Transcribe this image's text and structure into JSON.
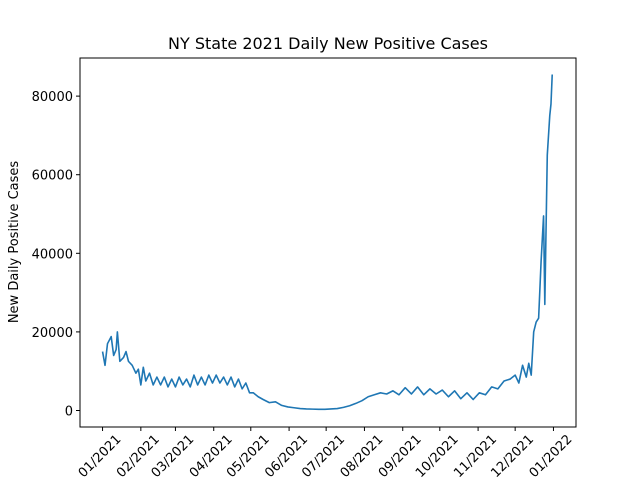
{
  "chart_data": {
    "type": "line",
    "title": "NY State 2021 Daily New Positive Cases",
    "y_label": "New Daily Positive Cases",
    "x": [
      0,
      2,
      4,
      7,
      9,
      11,
      12,
      14,
      17,
      19,
      21,
      24,
      27,
      29,
      31,
      33,
      35,
      38,
      41,
      44,
      47,
      50,
      53,
      56,
      59,
      62,
      65,
      68,
      71,
      74,
      77,
      80,
      83,
      86,
      89,
      92,
      95,
      98,
      101,
      104,
      107,
      110,
      113,
      116,
      119,
      122,
      126,
      130,
      135,
      140,
      145,
      150,
      155,
      160,
      165,
      170,
      175,
      180,
      185,
      190,
      195,
      200,
      205,
      210,
      215,
      220,
      225,
      230,
      235,
      240,
      245,
      250,
      255,
      260,
      265,
      270,
      275,
      280,
      285,
      290,
      295,
      300,
      305,
      310,
      315,
      320,
      325,
      330,
      334,
      337,
      340,
      343,
      345,
      347,
      349,
      351,
      353,
      355,
      357,
      358,
      360,
      362,
      363,
      364
    ],
    "series": [
      {
        "color": "#1f77b4",
        "values": [
          15000,
          11500,
          17000,
          18800,
          14000,
          15500,
          20000,
          12500,
          13500,
          15000,
          12500,
          11500,
          9500,
          10500,
          6500,
          11000,
          7500,
          9500,
          6500,
          8500,
          6500,
          8500,
          6000,
          8000,
          6000,
          8500,
          6500,
          8000,
          6000,
          9000,
          6500,
          8500,
          6500,
          9000,
          7000,
          9000,
          7000,
          8500,
          6500,
          8500,
          6000,
          8000,
          5500,
          7000,
          4500,
          4500,
          3500,
          2800,
          2000,
          2200,
          1300,
          900,
          700,
          500,
          400,
          350,
          300,
          300,
          400,
          500,
          800,
          1200,
          1800,
          2500,
          3500,
          4000,
          4500,
          4200,
          5000,
          4000,
          5800,
          4200,
          6000,
          4000,
          5500,
          4200,
          5200,
          3500,
          5000,
          3000,
          4500,
          2800,
          4500,
          4000,
          6000,
          5500,
          7500,
          8000,
          9000,
          7000,
          11500,
          8500,
          12000,
          9000,
          20000,
          22500,
          23500,
          38000,
          49500,
          27000,
          65000,
          75000,
          78000,
          85500
        ]
      }
    ],
    "xlim": [
      -18.25,
      383.25
    ],
    "xticks": [
      {
        "value": 0,
        "label": "01/2021"
      },
      {
        "value": 31,
        "label": "02/2021"
      },
      {
        "value": 59,
        "label": "03/2021"
      },
      {
        "value": 90,
        "label": "04/2021"
      },
      {
        "value": 120,
        "label": "05/2021"
      },
      {
        "value": 151,
        "label": "06/2021"
      },
      {
        "value": 181,
        "label": "07/2021"
      },
      {
        "value": 212,
        "label": "08/2021"
      },
      {
        "value": 243,
        "label": "09/2021"
      },
      {
        "value": 273,
        "label": "10/2021"
      },
      {
        "value": 304,
        "label": "11/2021"
      },
      {
        "value": 334,
        "label": "12/2021"
      },
      {
        "value": 365,
        "label": "01/2022"
      }
    ],
    "ylim": [
      -4200,
      89700
    ],
    "yticks": [
      0,
      20000,
      40000,
      60000,
      80000
    ]
  }
}
